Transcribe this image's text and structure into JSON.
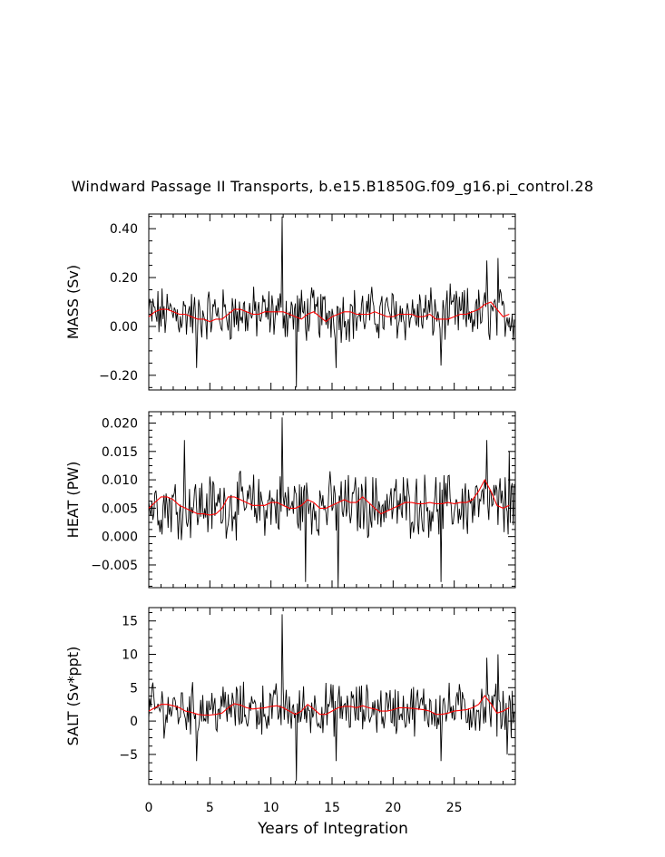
{
  "figure": {
    "title": "Windward Passage II Transports, b.e15.B1850G.f09_g16.pi_control.28",
    "xlabel": "Years of Integration"
  },
  "chart_data": [
    {
      "type": "line",
      "ylabel": "MASS (Sv)",
      "xlim": [
        0,
        30
      ],
      "ylim": [
        -0.26,
        0.46
      ],
      "yticks": [
        -0.2,
        0.0,
        0.2,
        0.4
      ],
      "ytick_labels": [
        "−0.20",
        "0.00",
        "0.20",
        "0.40"
      ],
      "xticks": [
        0,
        5,
        10,
        15,
        20,
        25
      ],
      "series": [
        {
          "color": "#000000",
          "mean": 0.05,
          "amp": 0.13,
          "spikes": [
            [
              10.9,
              0.45
            ],
            [
              12.1,
              -0.25
            ],
            [
              3.9,
              -0.17
            ],
            [
              15.3,
              -0.17
            ],
            [
              23.9,
              -0.16
            ],
            [
              27.7,
              0.27
            ],
            [
              28.6,
              0.28
            ]
          ]
        },
        {
          "color": "#ff0000",
          "x": [
            0,
            0.5,
            1,
            1.5,
            2,
            2.5,
            3,
            3.5,
            4,
            4.5,
            5,
            5.5,
            6,
            6.5,
            7,
            7.5,
            8,
            8.5,
            9,
            9.5,
            10,
            10.5,
            11,
            11.5,
            12,
            12.5,
            13,
            13.5,
            14,
            14.5,
            15,
            15.5,
            16,
            16.5,
            17,
            17.5,
            18,
            18.5,
            19,
            19.5,
            20,
            20.5,
            21,
            21.5,
            22,
            22.5,
            23,
            23.5,
            24,
            24.5,
            25,
            25.5,
            26,
            26.5,
            27,
            27.5,
            28,
            28.5,
            29,
            29.5
          ],
          "y": [
            0.04,
            0.06,
            0.07,
            0.07,
            0.06,
            0.05,
            0.05,
            0.04,
            0.03,
            0.03,
            0.02,
            0.03,
            0.03,
            0.05,
            0.07,
            0.07,
            0.06,
            0.05,
            0.05,
            0.06,
            0.06,
            0.06,
            0.06,
            0.05,
            0.04,
            0.03,
            0.05,
            0.06,
            0.04,
            0.02,
            0.04,
            0.05,
            0.06,
            0.06,
            0.05,
            0.05,
            0.05,
            0.06,
            0.05,
            0.04,
            0.04,
            0.05,
            0.05,
            0.05,
            0.04,
            0.04,
            0.05,
            0.03,
            0.03,
            0.03,
            0.04,
            0.05,
            0.05,
            0.06,
            0.07,
            0.09,
            0.1,
            0.07,
            0.04,
            0.05
          ]
        }
      ]
    },
    {
      "type": "line",
      "ylabel": "HEAT (PW)",
      "xlim": [
        0,
        30
      ],
      "ylim": [
        -0.009,
        0.022
      ],
      "yticks": [
        -0.005,
        0.0,
        0.005,
        0.01,
        0.015,
        0.02
      ],
      "ytick_labels": [
        "−0.005",
        "0.000",
        "0.005",
        "0.010",
        "0.015",
        "0.020"
      ],
      "xticks": [
        0,
        5,
        10,
        15,
        20,
        25
      ],
      "series": [
        {
          "color": "#000000",
          "mean": 0.0055,
          "amp": 0.0065,
          "spikes": [
            [
              10.9,
              0.021
            ],
            [
              12.8,
              -0.008
            ],
            [
              15.5,
              -0.009
            ],
            [
              23.9,
              -0.008
            ],
            [
              2.9,
              0.017
            ],
            [
              27.7,
              0.017
            ],
            [
              29.5,
              0.015
            ]
          ]
        },
        {
          "color": "#ff0000",
          "x": [
            0,
            0.5,
            1,
            1.5,
            2,
            2.5,
            3,
            3.5,
            4,
            4.5,
            5,
            5.5,
            6,
            6.5,
            7,
            7.5,
            8,
            8.5,
            9,
            9.5,
            10,
            10.5,
            11,
            11.5,
            12,
            12.5,
            13,
            13.5,
            14,
            14.5,
            15,
            15.5,
            16,
            16.5,
            17,
            17.5,
            18,
            18.5,
            19,
            19.5,
            20,
            20.5,
            21,
            21.5,
            22,
            22.5,
            23,
            23.5,
            24,
            24.5,
            25,
            25.5,
            26,
            26.5,
            27,
            27.5,
            28,
            28.5,
            29,
            29.5
          ],
          "y": [
            0.005,
            0.006,
            0.007,
            0.007,
            0.0065,
            0.0055,
            0.005,
            0.0045,
            0.004,
            0.004,
            0.0038,
            0.004,
            0.005,
            0.007,
            0.007,
            0.0065,
            0.006,
            0.0055,
            0.0055,
            0.0055,
            0.006,
            0.006,
            0.0055,
            0.005,
            0.005,
            0.0055,
            0.0065,
            0.006,
            0.005,
            0.005,
            0.0055,
            0.006,
            0.0065,
            0.006,
            0.006,
            0.007,
            0.006,
            0.005,
            0.004,
            0.0045,
            0.005,
            0.0055,
            0.006,
            0.006,
            0.0058,
            0.0058,
            0.006,
            0.0058,
            0.0058,
            0.006,
            0.0058,
            0.006,
            0.006,
            0.0065,
            0.008,
            0.01,
            0.008,
            0.0055,
            0.005,
            0.0055
          ]
        }
      ]
    },
    {
      "type": "line",
      "ylabel": "SALT (Sv*ppt)",
      "xlim": [
        0,
        30
      ],
      "ylim": [
        -9.5,
        17
      ],
      "yticks": [
        -5,
        0,
        5,
        10,
        15
      ],
      "ytick_labels": [
        "−5",
        "0",
        "5",
        "10",
        "15"
      ],
      "xticks": [
        0,
        5,
        10,
        15,
        20,
        25
      ],
      "xtick_labels": [
        "0",
        "5",
        "10",
        "15",
        "20",
        "25"
      ],
      "series": [
        {
          "color": "#000000",
          "mean": 1.8,
          "amp": 4.5,
          "spikes": [
            [
              10.9,
              16
            ],
            [
              12.1,
              -9
            ],
            [
              3.9,
              -6
            ],
            [
              15.3,
              -6
            ],
            [
              23.9,
              -6
            ],
            [
              27.7,
              9.5
            ],
            [
              28.6,
              10
            ],
            [
              29.3,
              -5
            ]
          ]
        },
        {
          "color": "#ff0000",
          "x": [
            0,
            0.5,
            1,
            1.5,
            2,
            2.5,
            3,
            3.5,
            4,
            4.5,
            5,
            5.5,
            6,
            6.5,
            7,
            7.5,
            8,
            8.5,
            9,
            9.5,
            10,
            10.5,
            11,
            11.5,
            12,
            12.5,
            13,
            13.5,
            14,
            14.5,
            15,
            15.5,
            16,
            16.5,
            17,
            17.5,
            18,
            18.5,
            19,
            19.5,
            20,
            20.5,
            21,
            21.5,
            22,
            22.5,
            23,
            23.5,
            24,
            24.5,
            25,
            25.5,
            26,
            26.5,
            27,
            27.5,
            28,
            28.5,
            29,
            29.5
          ],
          "y": [
            1.5,
            2.0,
            2.5,
            2.5,
            2.3,
            2.0,
            1.5,
            1.3,
            1.0,
            0.9,
            0.9,
            1.0,
            1.2,
            2.0,
            2.6,
            2.4,
            2.0,
            1.8,
            1.9,
            2.0,
            2.2,
            2.3,
            2.0,
            1.5,
            1.0,
            1.5,
            2.5,
            1.8,
            1.0,
            1.0,
            1.5,
            2.0,
            2.2,
            2.2,
            2.0,
            2.3,
            2.0,
            1.8,
            1.5,
            1.5,
            1.7,
            2.0,
            2.0,
            1.9,
            1.8,
            1.7,
            1.5,
            1.0,
            1.0,
            1.2,
            1.5,
            1.6,
            1.7,
            2.0,
            2.5,
            3.8,
            2.6,
            1.2,
            1.5,
            2.0
          ]
        }
      ]
    }
  ]
}
